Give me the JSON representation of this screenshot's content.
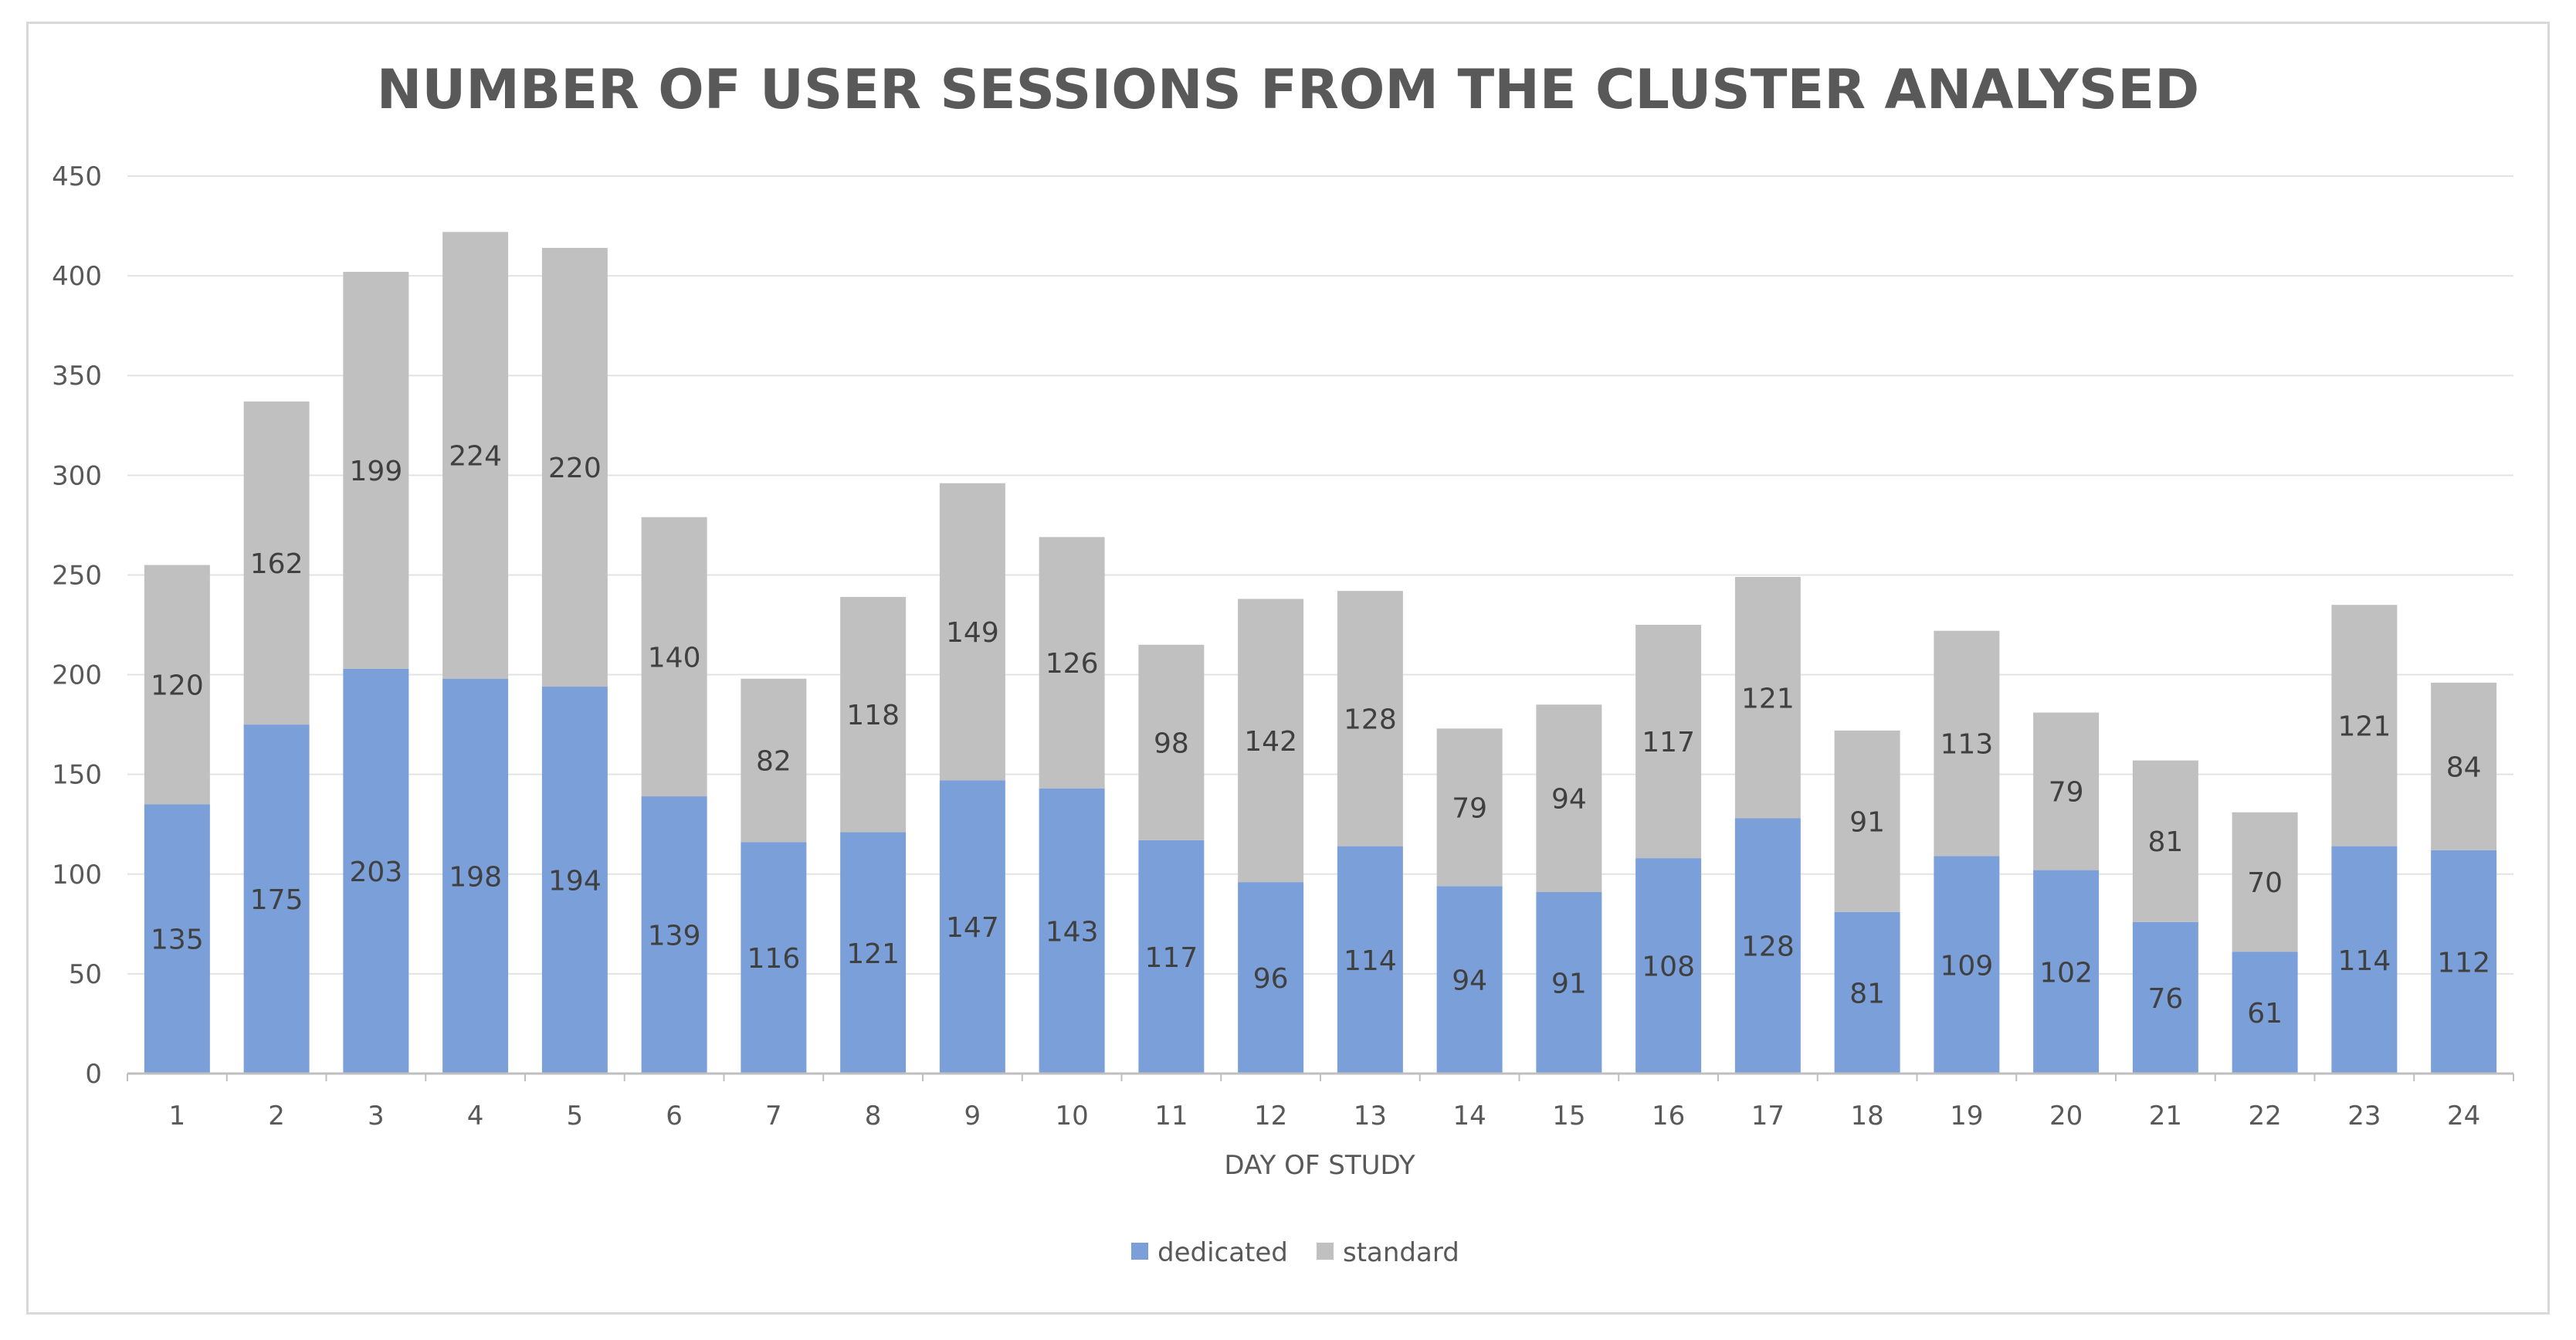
{
  "chart_data": {
    "type": "bar",
    "stacked": true,
    "title": "NUMBER OF USER SESSIONS FROM THE CLUSTER ANALYSED",
    "xlabel": "DAY OF STUDY",
    "ylabel": "",
    "ylim": [
      0,
      450
    ],
    "yticks": [
      0,
      50,
      100,
      150,
      200,
      250,
      300,
      350,
      400,
      450
    ],
    "grid": true,
    "legend_position": "bottom",
    "categories": [
      "1",
      "2",
      "3",
      "4",
      "5",
      "6",
      "7",
      "8",
      "9",
      "10",
      "11",
      "12",
      "13",
      "14",
      "15",
      "16",
      "17",
      "18",
      "19",
      "20",
      "21",
      "22",
      "23",
      "24"
    ],
    "series": [
      {
        "name": "dedicated",
        "color": "#7a9fd9",
        "values": [
          135,
          175,
          203,
          198,
          194,
          139,
          116,
          121,
          147,
          143,
          117,
          96,
          114,
          94,
          91,
          108,
          128,
          81,
          109,
          102,
          76,
          61,
          114,
          112
        ]
      },
      {
        "name": "standard",
        "color": "#c0c0c0",
        "values": [
          120,
          162,
          199,
          224,
          220,
          140,
          82,
          118,
          149,
          126,
          98,
          142,
          128,
          79,
          94,
          117,
          121,
          91,
          113,
          79,
          81,
          70,
          121,
          84
        ]
      }
    ]
  }
}
